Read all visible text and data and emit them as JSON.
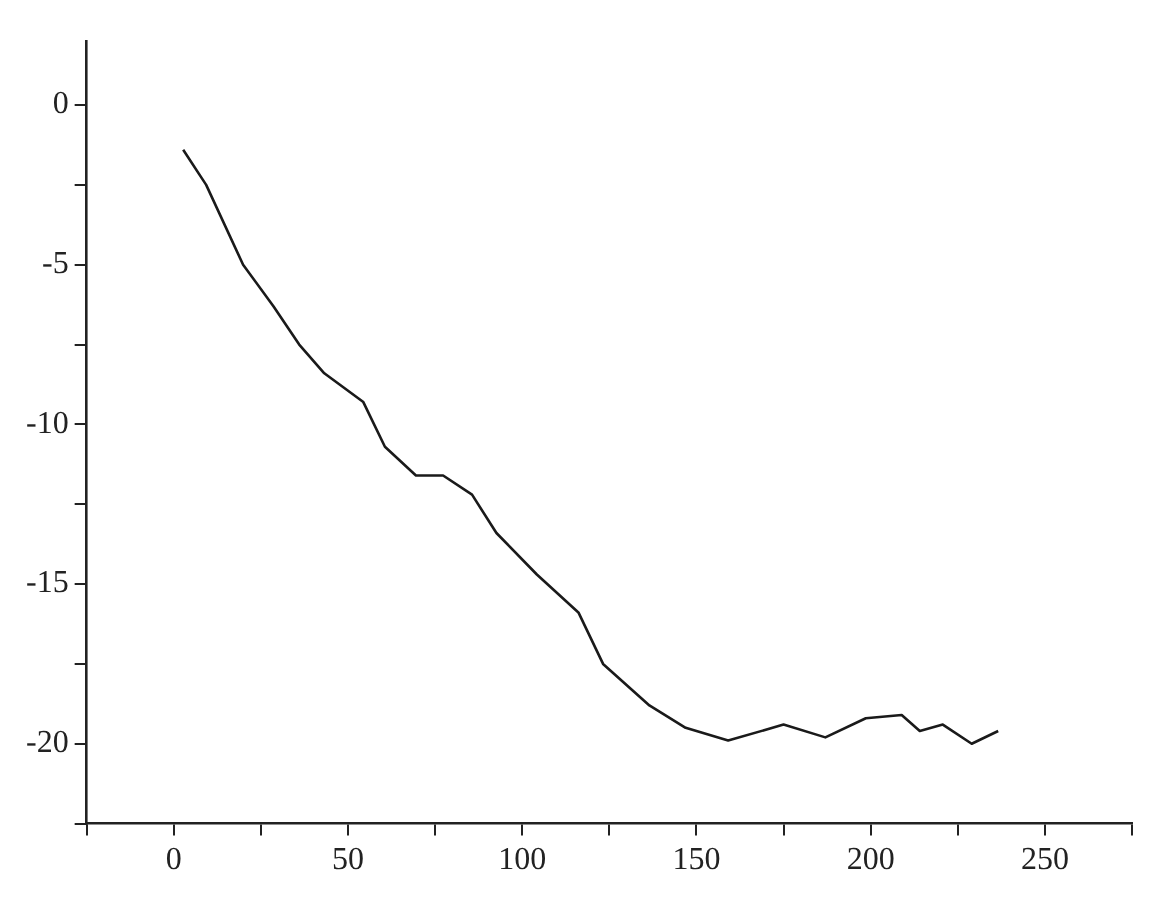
{
  "chart_data": {
    "type": "line",
    "x": [
      2.7,
      9.3,
      19.9,
      28.6,
      36,
      43.2,
      54.4,
      60.6,
      69.5,
      77.3,
      85.6,
      92.6,
      104.2,
      116.2,
      123.2,
      136.5,
      146.9,
      159.1,
      175,
      187,
      198.6,
      208.9,
      214.1,
      220.7,
      229,
      236.6
    ],
    "series": [
      {
        "color": "#1a1a1a",
        "values": [
          -1.4,
          -2.5,
          -5,
          -6.3,
          -7.5,
          -8.4,
          -9.3,
          -10.7,
          -11.6,
          -11.6,
          -12.2,
          -13.4,
          -14.7,
          -15.9,
          -17.5,
          -18.8,
          -19.5,
          -19.9,
          -19.4,
          -19.8,
          -19.2,
          -19.1,
          -19.6,
          -19.4,
          -20,
          -19.6
        ]
      }
    ],
    "xlim": [
      -25,
      275
    ],
    "xticks": [
      {
        "value": -25,
        "label": null
      },
      0,
      {
        "value": 25,
        "label": null
      },
      50,
      {
        "value": 75,
        "label": null
      },
      100,
      {
        "value": 125,
        "label": null
      },
      150,
      {
        "value": 175,
        "label": null
      },
      200,
      {
        "value": 225,
        "label": null
      },
      250,
      {
        "value": 275,
        "label": null
      }
    ],
    "ylim": [
      -22.5,
      2
    ],
    "yticks": [
      {
        "value": -22.5,
        "label": null
      },
      -20,
      {
        "value": -17.5,
        "label": null
      },
      -15,
      {
        "value": -12.5,
        "label": null
      },
      -10,
      {
        "value": -7.5,
        "label": null
      },
      -5,
      {
        "value": -2.5,
        "label": null
      },
      0
    ],
    "legend": false,
    "marker": "none",
    "line_style": "solid"
  }
}
